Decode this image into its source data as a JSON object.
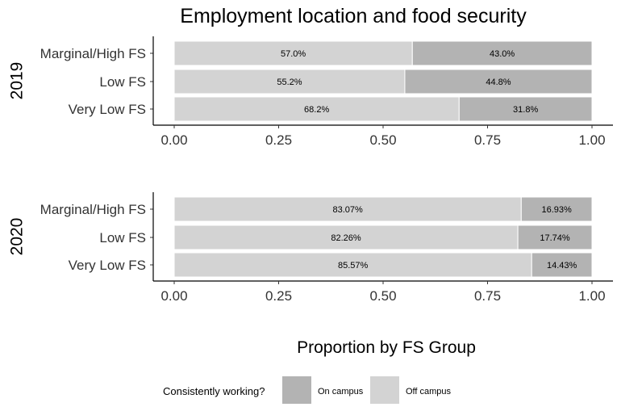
{
  "chart_data": {
    "type": "bar",
    "orientation": "horizontal",
    "stacked": true,
    "title": "Employment location and food security",
    "xlabel": "Proportion by FS Group",
    "xlim": [
      0,
      1
    ],
    "x_ticks": [
      "0.00",
      "0.25",
      "0.50",
      "0.75",
      "1.00"
    ],
    "categories": [
      "Marginal/High FS",
      "Low FS",
      "Very Low FS"
    ],
    "legend": {
      "title": "Consistently working?",
      "position": "bottom",
      "entries": [
        {
          "name": "On campus",
          "color": "#b3b3b3"
        },
        {
          "name": "Off campus",
          "color": "#d3d3d3"
        }
      ]
    },
    "panels": [
      {
        "label": "2019",
        "series": [
          {
            "name": "Off campus",
            "values": [
              0.57,
              0.552,
              0.682
            ],
            "labels": [
              "57.0%",
              "55.2%",
              "68.2%"
            ]
          },
          {
            "name": "On campus",
            "values": [
              0.43,
              0.448,
              0.318
            ],
            "labels": [
              "43.0%",
              "44.8%",
              "31.8%"
            ]
          }
        ]
      },
      {
        "label": "2020",
        "series": [
          {
            "name": "Off campus",
            "values": [
              0.8307,
              0.8226,
              0.8557
            ],
            "labels": [
              "83.07%",
              "82.26%",
              "85.57%"
            ]
          },
          {
            "name": "On campus",
            "values": [
              0.1693,
              0.1774,
              0.1443
            ],
            "labels": [
              "16.93%",
              "17.74%",
              "14.43%"
            ]
          }
        ]
      }
    ]
  }
}
